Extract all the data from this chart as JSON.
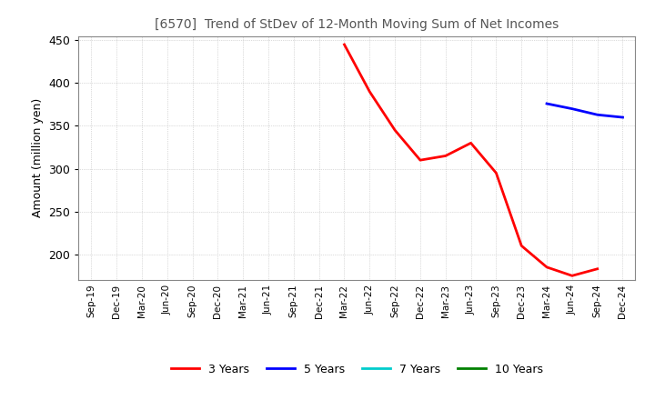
{
  "title": "[6570]  Trend of StDev of 12-Month Moving Sum of Net Incomes",
  "ylabel": "Amount (million yen)",
  "background_color": "#ffffff",
  "grid_color": "#bbbbbb",
  "ylim": [
    170,
    455
  ],
  "yticks": [
    200,
    250,
    300,
    350,
    400,
    450
  ],
  "series": {
    "3years": {
      "color": "#ff0000",
      "label": "3 Years",
      "x": [
        "Dec-21",
        "Mar-22",
        "Jun-22",
        "Sep-22",
        "Dec-22",
        "Mar-23",
        "Jun-23",
        "Sep-23",
        "Dec-23",
        "Mar-24",
        "Jun-24",
        "Sep-24"
      ],
      "y": [
        null,
        445,
        390,
        345,
        310,
        315,
        330,
        295,
        210,
        185,
        175,
        183
      ]
    },
    "5years": {
      "color": "#0000ff",
      "label": "5 Years",
      "x": [
        "Mar-24",
        "Jun-24",
        "Sep-24",
        "Dec-24"
      ],
      "y": [
        376,
        370,
        363,
        360
      ]
    },
    "7years": {
      "color": "#00cccc",
      "label": "7 Years",
      "x": [],
      "y": []
    },
    "10years": {
      "color": "#008000",
      "label": "10 Years",
      "x": [],
      "y": []
    }
  },
  "xtick_labels": [
    "Sep-19",
    "Dec-19",
    "Mar-20",
    "Jun-20",
    "Sep-20",
    "Dec-20",
    "Mar-21",
    "Jun-21",
    "Sep-21",
    "Dec-21",
    "Mar-22",
    "Jun-22",
    "Sep-22",
    "Dec-22",
    "Mar-23",
    "Jun-23",
    "Sep-23",
    "Dec-23",
    "Mar-24",
    "Jun-24",
    "Sep-24",
    "Dec-24"
  ],
  "legend_labels": [
    "3 Years",
    "5 Years",
    "7 Years",
    "10 Years"
  ],
  "legend_colors": [
    "#ff0000",
    "#0000ff",
    "#00cccc",
    "#008000"
  ]
}
